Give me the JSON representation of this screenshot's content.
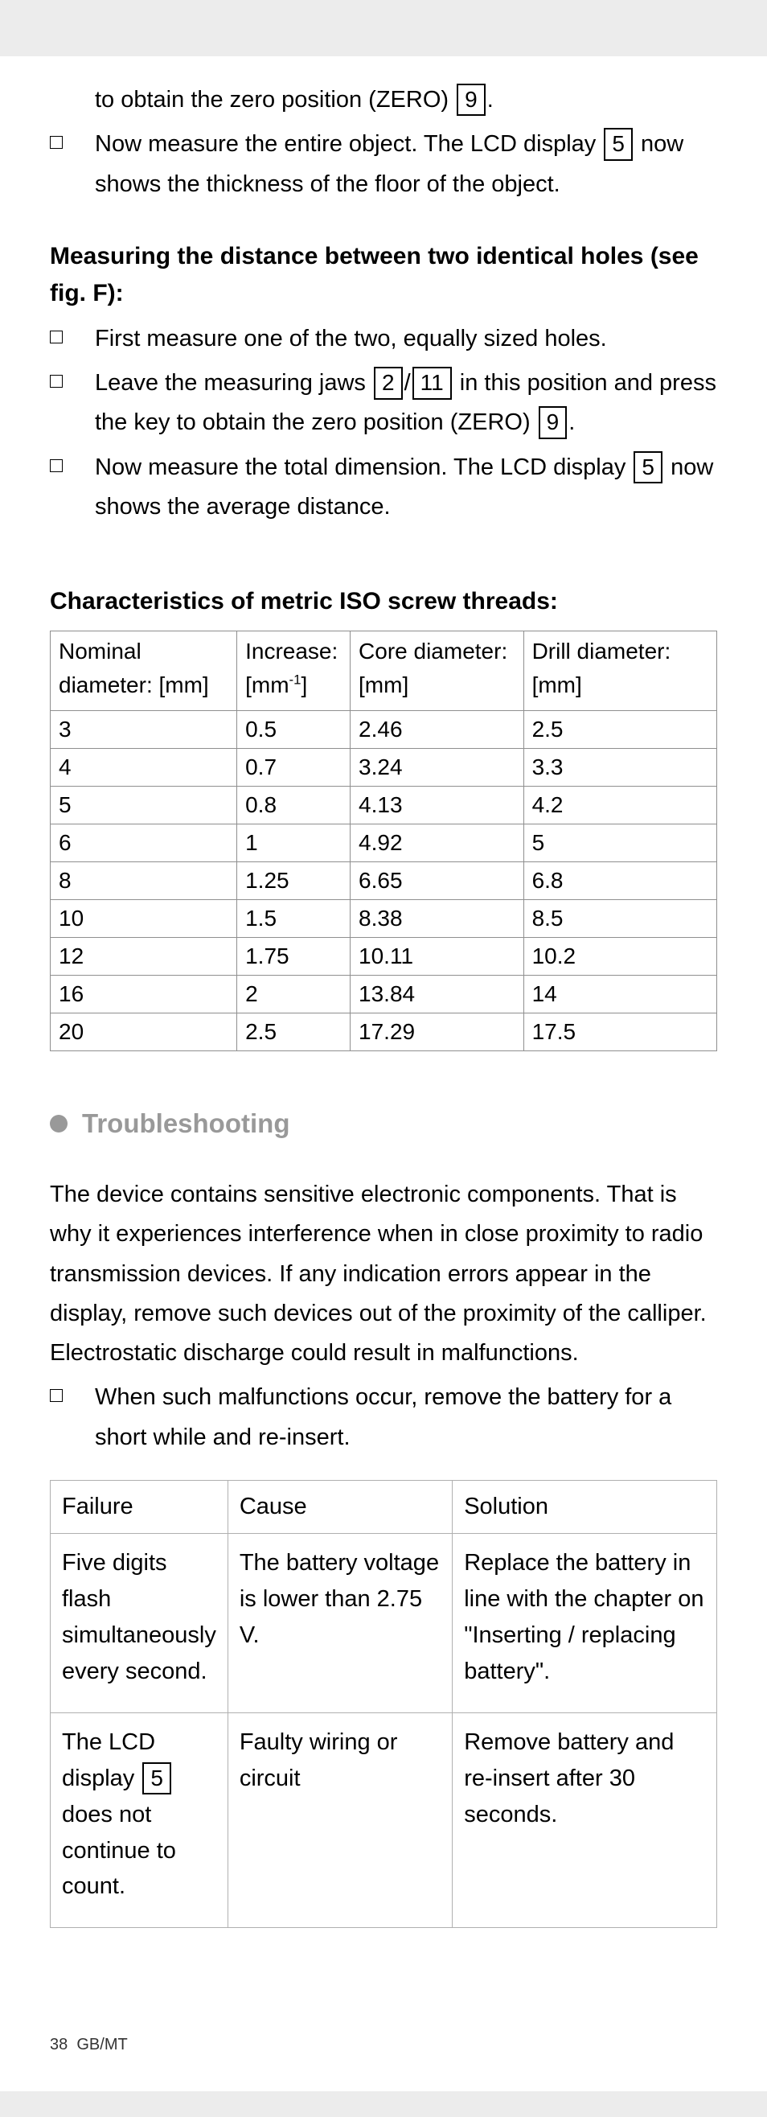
{
  "intro": {
    "trail": {
      "pre": "to obtain the zero position (ZERO)",
      "ref": "9",
      "post": "."
    },
    "b1": {
      "pre": "Now measure the entire object. The LCD display",
      "ref": "5",
      "post": "now shows the thickness of the floor of the object."
    }
  },
  "holes": {
    "title": "Measuring the distance between two identical holes (see fig. F):",
    "b1": "First measure one of the two, equally sized holes.",
    "b2": {
      "pre": "Leave the measuring jaws",
      "refA": "2",
      "slash": "/",
      "refB": "11",
      "mid": "in this position and press the key to obtain the zero position (ZERO)",
      "refC": "9",
      "post": "."
    },
    "b3": {
      "pre": "Now measure the total dimension. The LCD display",
      "ref": "5",
      "post": "now shows the average distance."
    }
  },
  "iso": {
    "title": "Characteristics of metric ISO screw threads:",
    "headers": {
      "nominal": "Nominal diameter: [mm]",
      "increase_a": "Increase:",
      "increase_b": "[mm",
      "increase_sup": "-1",
      "increase_c": "]",
      "core": "Core diameter: [mm]",
      "drill": "Drill diameter: [mm]"
    },
    "rows": [
      {
        "n": "3",
        "i": "0.5",
        "c": "2.46",
        "d": "2.5"
      },
      {
        "n": "4",
        "i": "0.7",
        "c": "3.24",
        "d": "3.3"
      },
      {
        "n": "5",
        "i": "0.8",
        "c": "4.13",
        "d": "4.2"
      },
      {
        "n": "6",
        "i": "1",
        "c": "4.92",
        "d": "5"
      },
      {
        "n": "8",
        "i": "1.25",
        "c": "6.65",
        "d": "6.8"
      },
      {
        "n": "10",
        "i": "1.5",
        "c": "8.38",
        "d": "8.5"
      },
      {
        "n": "12",
        "i": "1.75",
        "c": "10.11",
        "d": "10.2"
      },
      {
        "n": "16",
        "i": "2",
        "c": "13.84",
        "d": "14"
      },
      {
        "n": "20",
        "i": "2.5",
        "c": "17.29",
        "d": "17.5"
      }
    ]
  },
  "trouble": {
    "title": "Troubleshooting",
    "para": "The device contains sensitive electronic components. That is why it experiences interference when in close proximity to radio transmission devices. If any indication errors appear in the display, remove such devices out of the proximity of the calliper. Electrostatic discharge could result in malfunctions.",
    "b1": "When such malfunctions occur, remove the battery for a short while and re-insert.",
    "headers": {
      "f": "Failure",
      "c": "Cause",
      "s": "Solution"
    },
    "rows": [
      {
        "f": "Five digits flash simultaneously every second.",
        "c": "The battery voltage is lower than 2.75 V.",
        "s": "Replace the battery in line with the chapter on \"Inserting / replacing battery\"."
      },
      {
        "f_pre": "The LCD display",
        "f_ref": "5",
        "f_post": "does not continue to count.",
        "c": "Faulty wiring or circuit",
        "s": "Remove battery and re-insert after 30 seconds."
      }
    ]
  },
  "footer": {
    "page": "38",
    "label": "GB/MT"
  }
}
